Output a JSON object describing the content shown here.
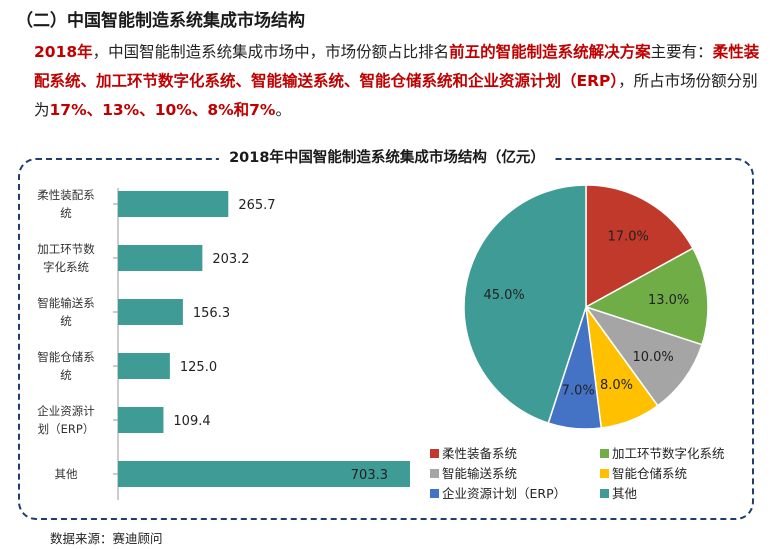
{
  "section": {
    "title": "（二）中国智能制造系统集成市场结构"
  },
  "intro": {
    "p1": "2018年",
    "p2": "，中国智能制造系统集成市场中，市场份额占比排名",
    "p3": "前五的智能制造系统解决方案",
    "p4": "主要有：",
    "p5": "柔性装配系统、加工环节数字化系统、智能输送系统、智能仓储系统和企业资源计划（ERP）",
    "p6": "，所占市场份额分别为",
    "p7": "17%、13%、10%、8%和7%",
    "p8": "。"
  },
  "source": "数据来源：赛迪顾问",
  "chart_data": [
    {
      "type": "bar",
      "orientation": "horizontal",
      "title": "2018年中国智能制造系统集成市场结构（亿元）",
      "categories": [
        [
          "柔性装配系",
          "统"
        ],
        [
          "加工环节数",
          "字化系统"
        ],
        [
          "智能输送系",
          "统"
        ],
        [
          "智能仓储系",
          "统"
        ],
        [
          "企业资源计",
          "划（ERP）"
        ],
        [
          "其他"
        ]
      ],
      "values": [
        265.7,
        203.2,
        156.3,
        125.0,
        109.4,
        703.3
      ],
      "value_labels": [
        "265.7",
        "203.2",
        "156.3",
        "125.0",
        "109.4",
        "703.3"
      ],
      "color": "#3f9b96",
      "xlim": [
        0,
        703.3
      ]
    },
    {
      "type": "pie",
      "slices": [
        {
          "name": "柔性装备系统",
          "value": 17.0,
          "label": "17.0%",
          "color": "#c0392b"
        },
        {
          "name": "加工环节数字化系统",
          "value": 13.0,
          "label": "13.0%",
          "color": "#70ad47"
        },
        {
          "name": "智能输送系统",
          "value": 10.0,
          "label": "10.0%",
          "color": "#a5a5a5"
        },
        {
          "name": "智能仓储系统",
          "value": 8.0,
          "label": "8.0%",
          "color": "#ffc000"
        },
        {
          "name": "企业资源计划（ERP）",
          "value": 7.0,
          "label": "7.0%",
          "color": "#4472c4"
        },
        {
          "name": "其他",
          "value": 45.0,
          "label": "45.0%",
          "color": "#3f9b96"
        }
      ],
      "legend_position": "bottom"
    }
  ]
}
